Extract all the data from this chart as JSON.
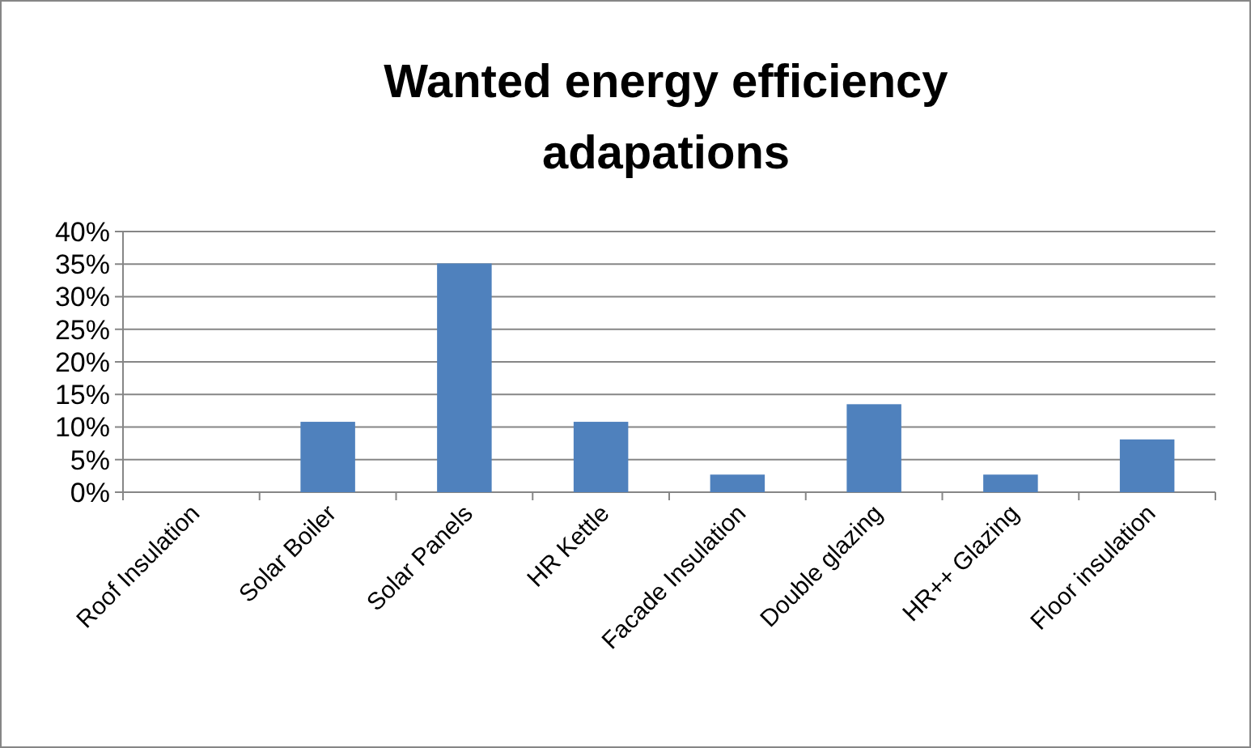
{
  "chart_data": {
    "type": "bar",
    "title": "Wanted energy efficiency adapations",
    "categories": [
      "Roof Insulation",
      "Solar Boiler",
      "Solar Panels",
      "HR Kettle",
      "Facade Insulation",
      "Double glazing",
      "HR++ Glazing",
      "Floor insulation"
    ],
    "values": [
      0,
      10.8,
      35.1,
      10.8,
      2.7,
      13.5,
      2.7,
      8.1
    ],
    "color": "#4f81bd",
    "ylim": [
      0,
      40
    ],
    "yticks": [
      {
        "value": 0,
        "label": "0%"
      },
      {
        "value": 5,
        "label": "5%"
      },
      {
        "value": 10,
        "label": "10%"
      },
      {
        "value": 15,
        "label": "15%"
      },
      {
        "value": 20,
        "label": "20%"
      },
      {
        "value": 25,
        "label": "25%"
      },
      {
        "value": 30,
        "label": "30%"
      },
      {
        "value": 35,
        "label": "35%"
      },
      {
        "value": 40,
        "label": "40%"
      }
    ],
    "grid": "y"
  }
}
